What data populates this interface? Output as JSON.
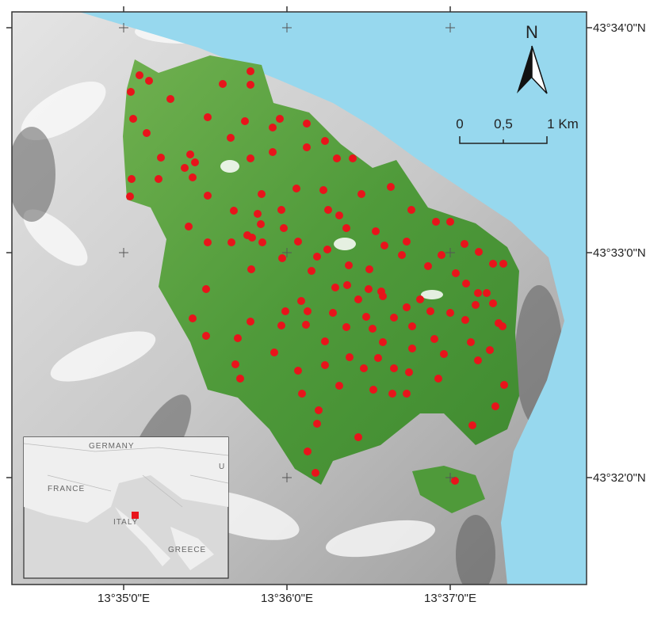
{
  "frame": {
    "lat_labels": [
      "43°34'0\"N",
      "43°33'0\"N",
      "43°32'0\"N"
    ],
    "lon_labels": [
      "13°35'0\"E",
      "13°36'0\"E",
      "13°37'0\"E"
    ]
  },
  "north_arrow": {
    "label": "N"
  },
  "scale_bar": {
    "labels": [
      "0",
      "0,5",
      "1 Km"
    ]
  },
  "inset": {
    "labels": [
      "GERMANY",
      "FRANCE",
      "ITALY",
      "GREECE",
      "U"
    ]
  }
}
